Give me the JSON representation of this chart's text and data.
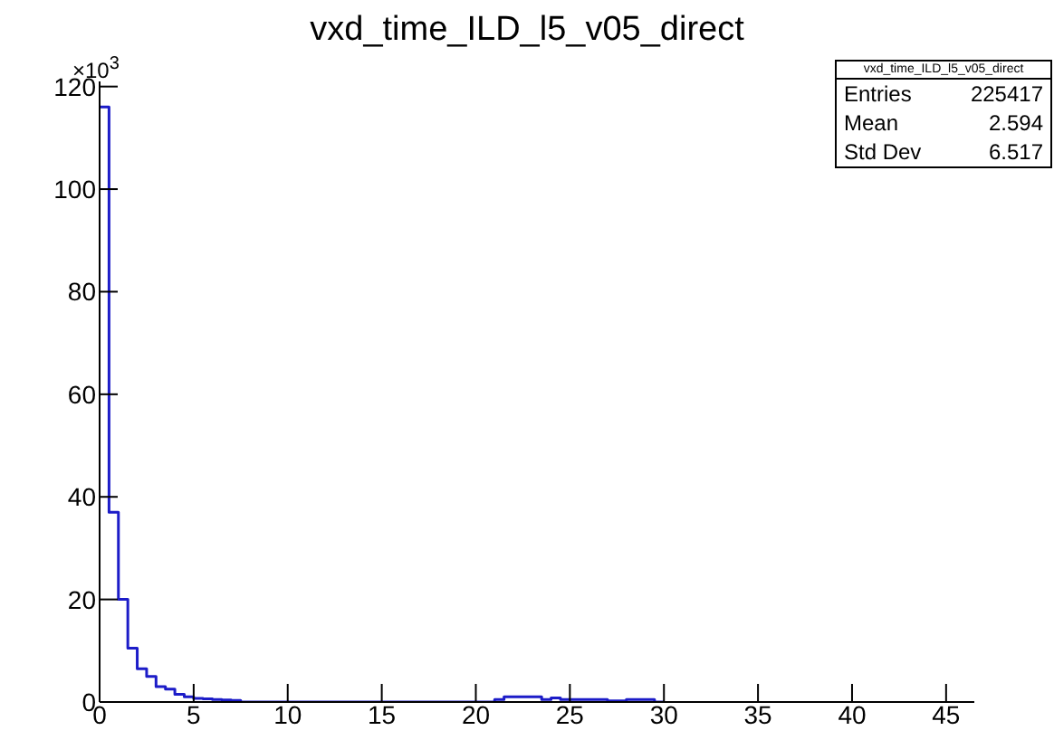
{
  "chart_data": {
    "type": "histogram",
    "title": "vxd_time_ILD_l5_v05_direct",
    "bins": [
      0,
      0.5,
      1,
      1.5,
      2,
      2.5,
      3,
      3.5,
      4,
      4.5,
      5,
      5.5,
      6,
      6.5,
      7,
      7.5,
      8,
      8.5,
      9,
      9.5,
      10,
      10.5,
      11,
      11.5,
      12,
      12.5,
      13,
      13.5,
      14,
      14.5,
      15,
      15.5,
      16,
      16.5,
      17,
      17.5,
      18,
      18.5,
      19,
      19.5,
      20,
      20.5,
      21,
      21.5,
      22,
      22.5,
      23,
      23.5,
      24,
      24.5,
      25,
      25.5,
      26,
      26.5,
      27,
      27.5,
      28,
      28.5,
      29,
      29.5,
      30
    ],
    "values": [
      116,
      37,
      20,
      10.5,
      6.5,
      5,
      3,
      2.5,
      1.5,
      1,
      0.7,
      0.6,
      0.5,
      0.4,
      0.3,
      0,
      0,
      0,
      0,
      0,
      0,
      0,
      0,
      0,
      0,
      0,
      0,
      0,
      0,
      0,
      0,
      0,
      0,
      0,
      0,
      0,
      0,
      0,
      0,
      0,
      0,
      0,
      0.5,
      1,
      1,
      1,
      1,
      0.5,
      0.8,
      0.5,
      0.5,
      0.5,
      0.5,
      0.5,
      0.2,
      0.2,
      0.5,
      0.5,
      0.5,
      0
    ],
    "color": "#1c1cc8",
    "xlim": [
      0,
      46.5
    ],
    "xticks": [
      0,
      5,
      10,
      15,
      20,
      25,
      30,
      35,
      40,
      45
    ],
    "ylim": [
      0,
      121
    ],
    "yticks": [
      0,
      20,
      40,
      60,
      80,
      100,
      120
    ],
    "grid": false,
    "annotations": [
      "×10$^{3}$",
      "vxd_time_ILD_l5_v05_direct",
      "Entries",
      "225417",
      "Mean",
      "2.594",
      "Std Dev",
      "6.517"
    ]
  }
}
